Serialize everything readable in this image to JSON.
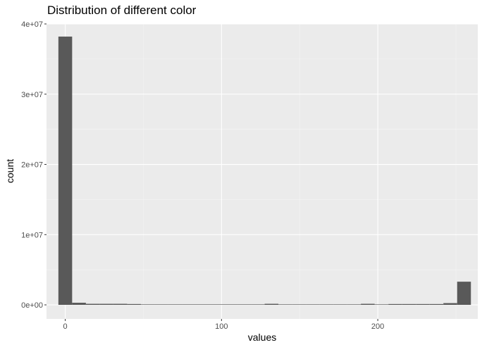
{
  "chart_data": {
    "type": "bar",
    "title": "Distribution of different color",
    "xlabel": "values",
    "ylabel": "count",
    "xlim": [
      -12,
      264
    ],
    "ylim": [
      -2000000,
      40000000
    ],
    "x_ticks": [
      0,
      100,
      200
    ],
    "x_tick_labels": [
      "0",
      "100",
      "200"
    ],
    "y_ticks": [
      0,
      10000000,
      20000000,
      30000000,
      40000000
    ],
    "y_tick_labels": [
      "0e+00",
      "1e+07",
      "2e+07",
      "3e+07",
      "4e+07"
    ],
    "grid": true,
    "colors": {
      "panel_background": "#ebebeb",
      "grid_major": "#ffffff",
      "grid_minor": "#f5f5f5",
      "bar_fill": "#595959"
    },
    "series": [
      {
        "bins": [
          {
            "x0": -4.4,
            "x1": 4.4,
            "count": 38200000
          },
          {
            "x0": 4.4,
            "x1": 13.2,
            "count": 300000
          },
          {
            "x0": 13.2,
            "x1": 22.0,
            "count": 150000
          },
          {
            "x0": 22.0,
            "x1": 30.8,
            "count": 150000
          },
          {
            "x0": 30.8,
            "x1": 39.6,
            "count": 150000
          },
          {
            "x0": 39.6,
            "x1": 48.4,
            "count": 120000
          },
          {
            "x0": 48.4,
            "x1": 57.2,
            "count": 70000
          },
          {
            "x0": 57.2,
            "x1": 66.0,
            "count": 70000
          },
          {
            "x0": 66.0,
            "x1": 74.8,
            "count": 70000
          },
          {
            "x0": 74.8,
            "x1": 83.6,
            "count": 70000
          },
          {
            "x0": 83.6,
            "x1": 92.4,
            "count": 70000
          },
          {
            "x0": 92.4,
            "x1": 101.2,
            "count": 70000
          },
          {
            "x0": 101.2,
            "x1": 110.0,
            "count": 70000
          },
          {
            "x0": 110.0,
            "x1": 118.8,
            "count": 70000
          },
          {
            "x0": 118.8,
            "x1": 127.6,
            "count": 70000
          },
          {
            "x0": 127.6,
            "x1": 136.4,
            "count": 150000
          },
          {
            "x0": 136.4,
            "x1": 145.2,
            "count": 70000
          },
          {
            "x0": 145.2,
            "x1": 154.0,
            "count": 70000
          },
          {
            "x0": 154.0,
            "x1": 162.8,
            "count": 70000
          },
          {
            "x0": 162.8,
            "x1": 171.6,
            "count": 70000
          },
          {
            "x0": 171.6,
            "x1": 180.4,
            "count": 70000
          },
          {
            "x0": 180.4,
            "x1": 189.2,
            "count": 70000
          },
          {
            "x0": 189.2,
            "x1": 198.0,
            "count": 150000
          },
          {
            "x0": 198.0,
            "x1": 206.8,
            "count": 70000
          },
          {
            "x0": 206.8,
            "x1": 215.6,
            "count": 120000
          },
          {
            "x0": 215.6,
            "x1": 224.4,
            "count": 120000
          },
          {
            "x0": 224.4,
            "x1": 233.2,
            "count": 120000
          },
          {
            "x0": 233.2,
            "x1": 242.0,
            "count": 120000
          },
          {
            "x0": 242.0,
            "x1": 250.8,
            "count": 250000
          },
          {
            "x0": 250.8,
            "x1": 259.6,
            "count": 3300000
          }
        ]
      }
    ]
  }
}
